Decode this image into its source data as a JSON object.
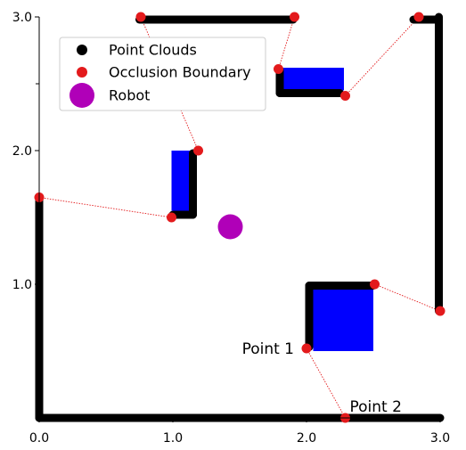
{
  "chart_data": {
    "type": "scatter",
    "xlim": [
      0.0,
      3.0
    ],
    "ylim": [
      0.0,
      3.0
    ],
    "xticks": [
      {
        "value": 0.0,
        "label": "0.0"
      },
      {
        "value": 1.0,
        "label": "1.0"
      },
      {
        "value": 2.0,
        "label": "2.0"
      },
      {
        "value": 3.0,
        "label": "3.0"
      }
    ],
    "yticks": [
      {
        "value": 1.0,
        "label": "1.0"
      },
      {
        "value": 2.0,
        "label": "2.0"
      },
      {
        "value": 3.0,
        "label": "3.0"
      }
    ],
    "minor_ticks": [
      0.5,
      1.5,
      2.5
    ],
    "grid": false,
    "legend": {
      "placement": "upper-left",
      "entries": [
        {
          "label": "Point Clouds",
          "marker": "dot",
          "color": "#000000"
        },
        {
          "label": "Occlusion Boundary",
          "marker": "dot",
          "color": "#e31a1c"
        },
        {
          "label": "Robot",
          "marker": "big-dot",
          "color": "#b000b8"
        }
      ]
    },
    "obstacles": [
      {
        "name": "blue-box-top",
        "x0": 1.8,
        "x1": 2.28,
        "y0": 2.45,
        "y1": 2.62,
        "color": "#0000ff"
      },
      {
        "name": "blue-box-left",
        "x0": 0.99,
        "x1": 1.15,
        "y0": 1.55,
        "y1": 2.0,
        "color": "#0000ff"
      },
      {
        "name": "blue-box-bottom",
        "x0": 2.05,
        "x1": 2.5,
        "y0": 0.5,
        "y1": 0.97,
        "color": "#0000ff"
      }
    ],
    "point_cloud_segments": [
      {
        "x0": 0.0,
        "y0": 0.0,
        "x1": 3.0,
        "y1": 0.0
      },
      {
        "x0": 0.0,
        "y0": 0.0,
        "x1": 0.0,
        "y1": 1.63
      },
      {
        "x0": 2.99,
        "y0": 0.8,
        "x1": 2.99,
        "y1": 3.0
      },
      {
        "x0": 0.75,
        "y0": 2.98,
        "x1": 1.9,
        "y1": 2.98
      },
      {
        "x0": 2.8,
        "y0": 2.98,
        "x1": 2.99,
        "y1": 2.98
      },
      {
        "x0": 1.8,
        "y0": 2.43,
        "x1": 2.25,
        "y1": 2.43
      },
      {
        "x0": 1.8,
        "y0": 2.43,
        "x1": 1.8,
        "y1": 2.6
      },
      {
        "x0": 1.15,
        "y0": 1.52,
        "x1": 1.15,
        "y1": 1.98
      },
      {
        "x0": 1.0,
        "y0": 1.52,
        "x1": 1.15,
        "y1": 1.52
      },
      {
        "x0": 2.02,
        "y0": 0.53,
        "x1": 2.02,
        "y1": 0.99
      },
      {
        "x0": 2.02,
        "y0": 0.99,
        "x1": 2.5,
        "y1": 0.99
      }
    ],
    "occlusion_boundary_points": [
      {
        "x": 0.0,
        "y": 1.65
      },
      {
        "x": 0.99,
        "y": 1.5
      },
      {
        "x": 1.19,
        "y": 2.0
      },
      {
        "x": 0.76,
        "y": 3.0
      },
      {
        "x": 1.91,
        "y": 3.0
      },
      {
        "x": 1.79,
        "y": 2.61
      },
      {
        "x": 2.29,
        "y": 2.41
      },
      {
        "x": 2.84,
        "y": 3.0
      },
      {
        "x": 2.51,
        "y": 1.0
      },
      {
        "x": 3.0,
        "y": 0.8
      },
      {
        "x": 2.0,
        "y": 0.52
      },
      {
        "x": 2.29,
        "y": 0.0
      }
    ],
    "occlusion_rays": [
      {
        "x0": 0.0,
        "y0": 1.65,
        "x1": 0.99,
        "y1": 1.5
      },
      {
        "x0": 1.19,
        "y0": 2.0,
        "x1": 0.76,
        "y1": 3.0
      },
      {
        "x0": 1.79,
        "y0": 2.61,
        "x1": 1.91,
        "y1": 3.0
      },
      {
        "x0": 2.29,
        "y0": 2.41,
        "x1": 2.84,
        "y1": 3.0
      },
      {
        "x0": 2.51,
        "y0": 1.0,
        "x1": 3.0,
        "y1": 0.8
      },
      {
        "x0": 2.0,
        "y0": 0.52,
        "x1": 2.29,
        "y1": 0.0
      }
    ],
    "robot": {
      "x": 1.43,
      "y": 1.43
    },
    "annotations": [
      {
        "text": "Point 1",
        "x": 2.0,
        "y": 0.52,
        "side": "left"
      },
      {
        "text": "Point 2",
        "x": 2.29,
        "y": 0.0,
        "side": "right"
      }
    ]
  }
}
